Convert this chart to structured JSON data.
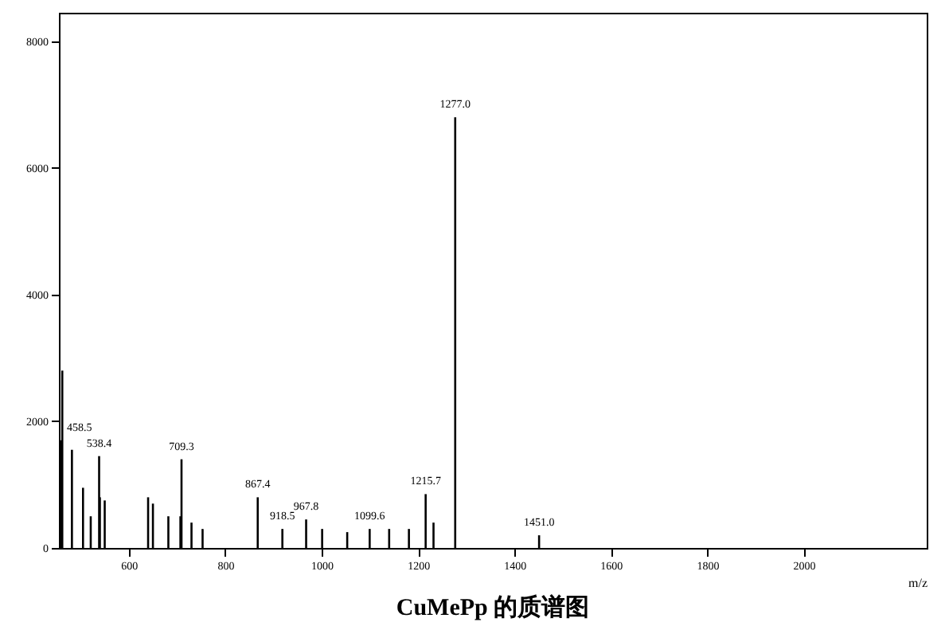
{
  "chart_data": {
    "type": "bar",
    "title": "CuMePp 的质谱图",
    "xlabel": "m/z",
    "x": [
      458.5,
      462,
      482,
      505,
      521,
      538.4,
      540,
      550,
      640,
      650,
      682,
      707,
      709.3,
      730,
      753,
      867.4,
      918.5,
      967.8,
      1001,
      1053,
      1099.6,
      1140,
      1181,
      1215.7,
      1232,
      1277.0,
      1451.0
    ],
    "series": [
      {
        "color": "#000000",
        "values": [
          1700,
          2800,
          1550,
          950,
          500,
          1450,
          800,
          750,
          800,
          700,
          500,
          500,
          1400,
          400,
          300,
          800,
          300,
          450,
          300,
          250,
          300,
          300,
          300,
          850,
          400,
          6800,
          200
        ]
      }
    ],
    "value_labels": [
      "458.5",
      null,
      null,
      null,
      null,
      "538.4",
      null,
      null,
      null,
      null,
      null,
      null,
      "709.3",
      null,
      null,
      "867.4",
      "918.5",
      "967.8",
      null,
      null,
      "1099.6",
      null,
      null,
      "1215.7",
      null,
      "1277.0",
      "1451.0"
    ],
    "xlim": [
      455,
      2255
    ],
    "xticks": [
      600,
      800,
      1000,
      1200,
      1400,
      1600,
      1800,
      2000
    ],
    "ylim": [
      0,
      8450
    ],
    "yticks": [
      0,
      2000,
      4000,
      6000,
      8000
    ],
    "grid": false
  }
}
